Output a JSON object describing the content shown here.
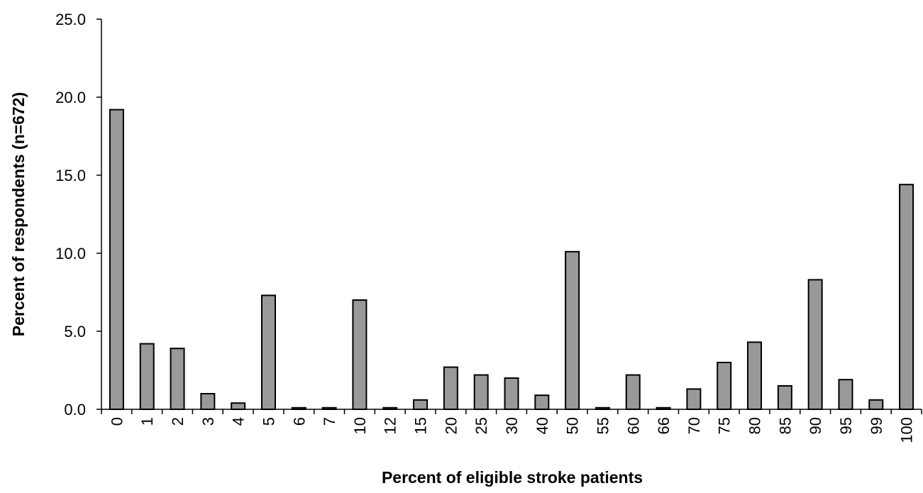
{
  "chart_data": {
    "type": "bar",
    "title": "",
    "xlabel": "Percent of eligible stroke patients",
    "ylabel": "Percent of respondents (n=672)",
    "ylim": [
      0,
      25
    ],
    "yticks": [
      "0.0",
      "5.0",
      "10.0",
      "15.0",
      "20.0",
      "25.0"
    ],
    "grid": false,
    "legend": "none",
    "categories": [
      "0",
      "1",
      "2",
      "3",
      "4",
      "5",
      "6",
      "7",
      "10",
      "12",
      "15",
      "20",
      "25",
      "30",
      "40",
      "50",
      "55",
      "60",
      "66",
      "70",
      "75",
      "80",
      "85",
      "90",
      "95",
      "99",
      "100"
    ],
    "values": [
      19.2,
      4.2,
      3.9,
      1.0,
      0.4,
      7.3,
      0.1,
      0.1,
      7.0,
      0.1,
      0.6,
      2.7,
      2.2,
      2.0,
      0.9,
      10.1,
      0.1,
      2.2,
      0.1,
      1.3,
      3.0,
      4.3,
      1.5,
      8.3,
      1.9,
      0.6,
      14.4
    ],
    "colors": {
      "bar_fill": "#999999",
      "bar_stroke": "#000000",
      "axis": "#000000"
    }
  }
}
